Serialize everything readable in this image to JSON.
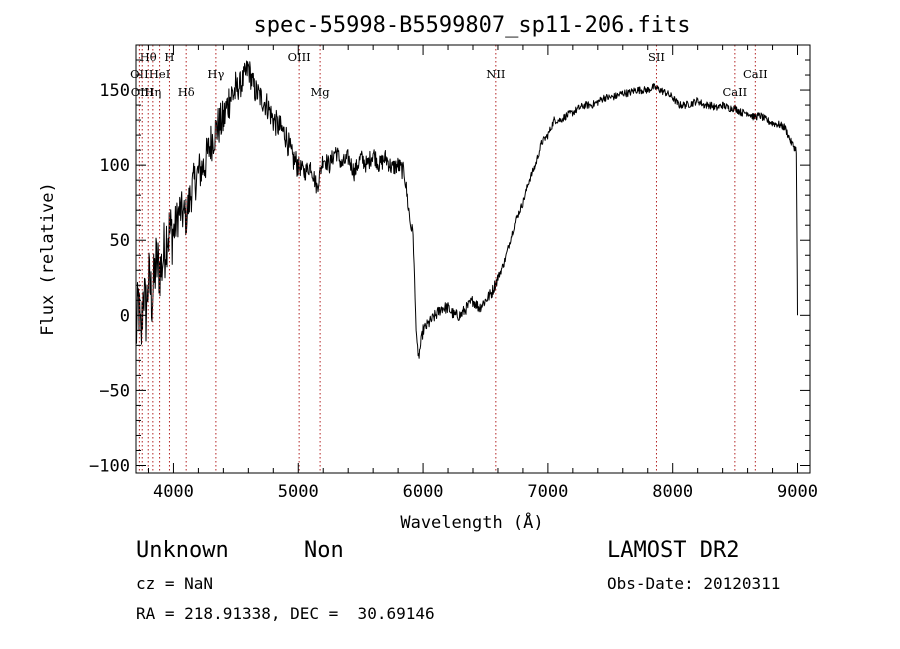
{
  "chart_data": {
    "type": "line",
    "title": "spec-55998-B5599807_sp11-206.fits",
    "xlabel": "Wavelength (Å)",
    "ylabel": "Flux (relative)",
    "xlim": [
      3700,
      9100
    ],
    "ylim": [
      -105,
      180
    ],
    "xticks": [
      4000,
      5000,
      6000,
      7000,
      8000,
      9000
    ],
    "yticks": [
      -100,
      -50,
      0,
      50,
      100,
      150
    ],
    "grid": false,
    "series": [
      {
        "x": [
          3700,
          3720,
          3740,
          3760,
          3780,
          3800,
          3830,
          3860,
          3900,
          3950,
          4000,
          4050,
          4100,
          4150,
          4200,
          4250,
          4300,
          4350,
          4400,
          4450,
          4500,
          4550,
          4600,
          4650,
          4700,
          4750,
          4800,
          4850,
          4900,
          4950,
          5000,
          5050,
          5100,
          5150,
          5200,
          5250,
          5300,
          5350,
          5400,
          5450,
          5500,
          5550,
          5600,
          5650,
          5700,
          5750,
          5800,
          5850,
          5900,
          5920,
          5940,
          5960,
          6000,
          6050,
          6100,
          6150,
          6200,
          6250,
          6300,
          6350,
          6400,
          6450,
          6500,
          6550,
          6600,
          6650,
          6700,
          6750,
          6800,
          6850,
          6900,
          6950,
          7000,
          7050,
          7100,
          7150,
          7200,
          7250,
          7300,
          7350,
          7400,
          7450,
          7500,
          7550,
          7600,
          7650,
          7700,
          7750,
          7800,
          7850,
          7900,
          7950,
          8000,
          8050,
          8100,
          8150,
          8200,
          8250,
          8300,
          8350,
          8400,
          8450,
          8500,
          8550,
          8600,
          8650,
          8700,
          8750,
          8800,
          8850,
          8900,
          8950,
          8990,
          9000
        ],
        "y": [
          -15,
          10,
          -20,
          20,
          0,
          25,
          10,
          35,
          30,
          55,
          55,
          70,
          65,
          85,
          95,
          100,
          115,
          125,
          130,
          145,
          150,
          155,
          165,
          150,
          145,
          140,
          130,
          125,
          120,
          105,
          100,
          95,
          100,
          85,
          105,
          100,
          110,
          100,
          105,
          95,
          105,
          100,
          108,
          100,
          105,
          98,
          100,
          95,
          60,
          55,
          0,
          -30,
          -10,
          -5,
          0,
          5,
          5,
          0,
          0,
          5,
          10,
          5,
          10,
          15,
          25,
          35,
          50,
          65,
          75,
          90,
          100,
          115,
          120,
          130,
          130,
          133,
          135,
          138,
          140,
          140,
          142,
          145,
          145,
          146,
          148,
          148,
          150,
          150,
          150,
          152,
          150,
          148,
          145,
          140,
          140,
          141,
          143,
          140,
          140,
          138,
          140,
          138,
          138,
          135,
          135,
          132,
          133,
          130,
          128,
          127,
          125,
          115,
          110,
          0
        ]
      }
    ],
    "lines": [
      {
        "label": "Hθ",
        "x": 3798,
        "row": 1
      },
      {
        "label": "H",
        "x": 3968,
        "row": 1
      },
      {
        "label": "OIII",
        "x": 5007,
        "row": 1
      },
      {
        "label": "SII",
        "x": 7870,
        "row": 1
      },
      {
        "label": "OII",
        "x": 3727,
        "row": 2
      },
      {
        "label": "HeI",
        "x": 3889,
        "row": 2
      },
      {
        "label": "Hγ",
        "x": 4340,
        "row": 2
      },
      {
        "label": "NII",
        "x": 6583,
        "row": 2
      },
      {
        "label": "CaII",
        "x": 8662,
        "row": 2
      },
      {
        "label": "OIII",
        "x": 3750,
        "row": 3
      },
      {
        "label": "Hη",
        "x": 3835,
        "row": 3
      },
      {
        "label": "Hδ",
        "x": 4102,
        "row": 3
      },
      {
        "label": "Mg",
        "x": 5175,
        "row": 3
      },
      {
        "label": "CaII",
        "x": 8498,
        "row": 3
      }
    ]
  },
  "info": {
    "class": "Unknown",
    "subclass": "Non",
    "cz": "cz = NaN",
    "coords": "RA = 218.91338, DEC =  30.69146",
    "survey": "LAMOST DR2",
    "obsdate": "Obs-Date: 20120311"
  }
}
